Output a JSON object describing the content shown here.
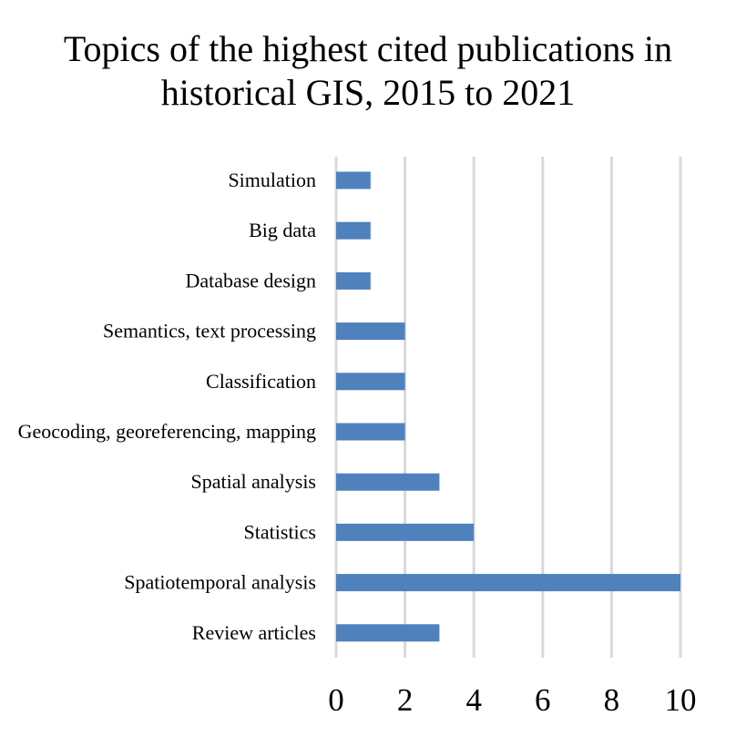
{
  "chart_data": {
    "type": "bar",
    "orientation": "horizontal",
    "title_lines": [
      "Topics of the highest cited publications in",
      "historical GIS, 2015 to 2021"
    ],
    "categories": [
      "Simulation",
      "Big data",
      "Database design",
      "Semantics, text processing",
      "Classification",
      "Geocoding, georeferencing, mapping",
      "Spatial analysis",
      "Statistics",
      "Spatiotemporal analysis",
      "Review articles"
    ],
    "values": [
      1,
      1,
      1,
      2,
      2,
      2,
      3,
      4,
      10,
      3
    ],
    "xlim": [
      0,
      10
    ],
    "xticks": [
      "0",
      "2",
      "4",
      "6",
      "8",
      "10"
    ],
    "grid": "vertical",
    "legend": "none",
    "bar_color": "#4f81bd",
    "grid_color": "#d9d9d9"
  }
}
